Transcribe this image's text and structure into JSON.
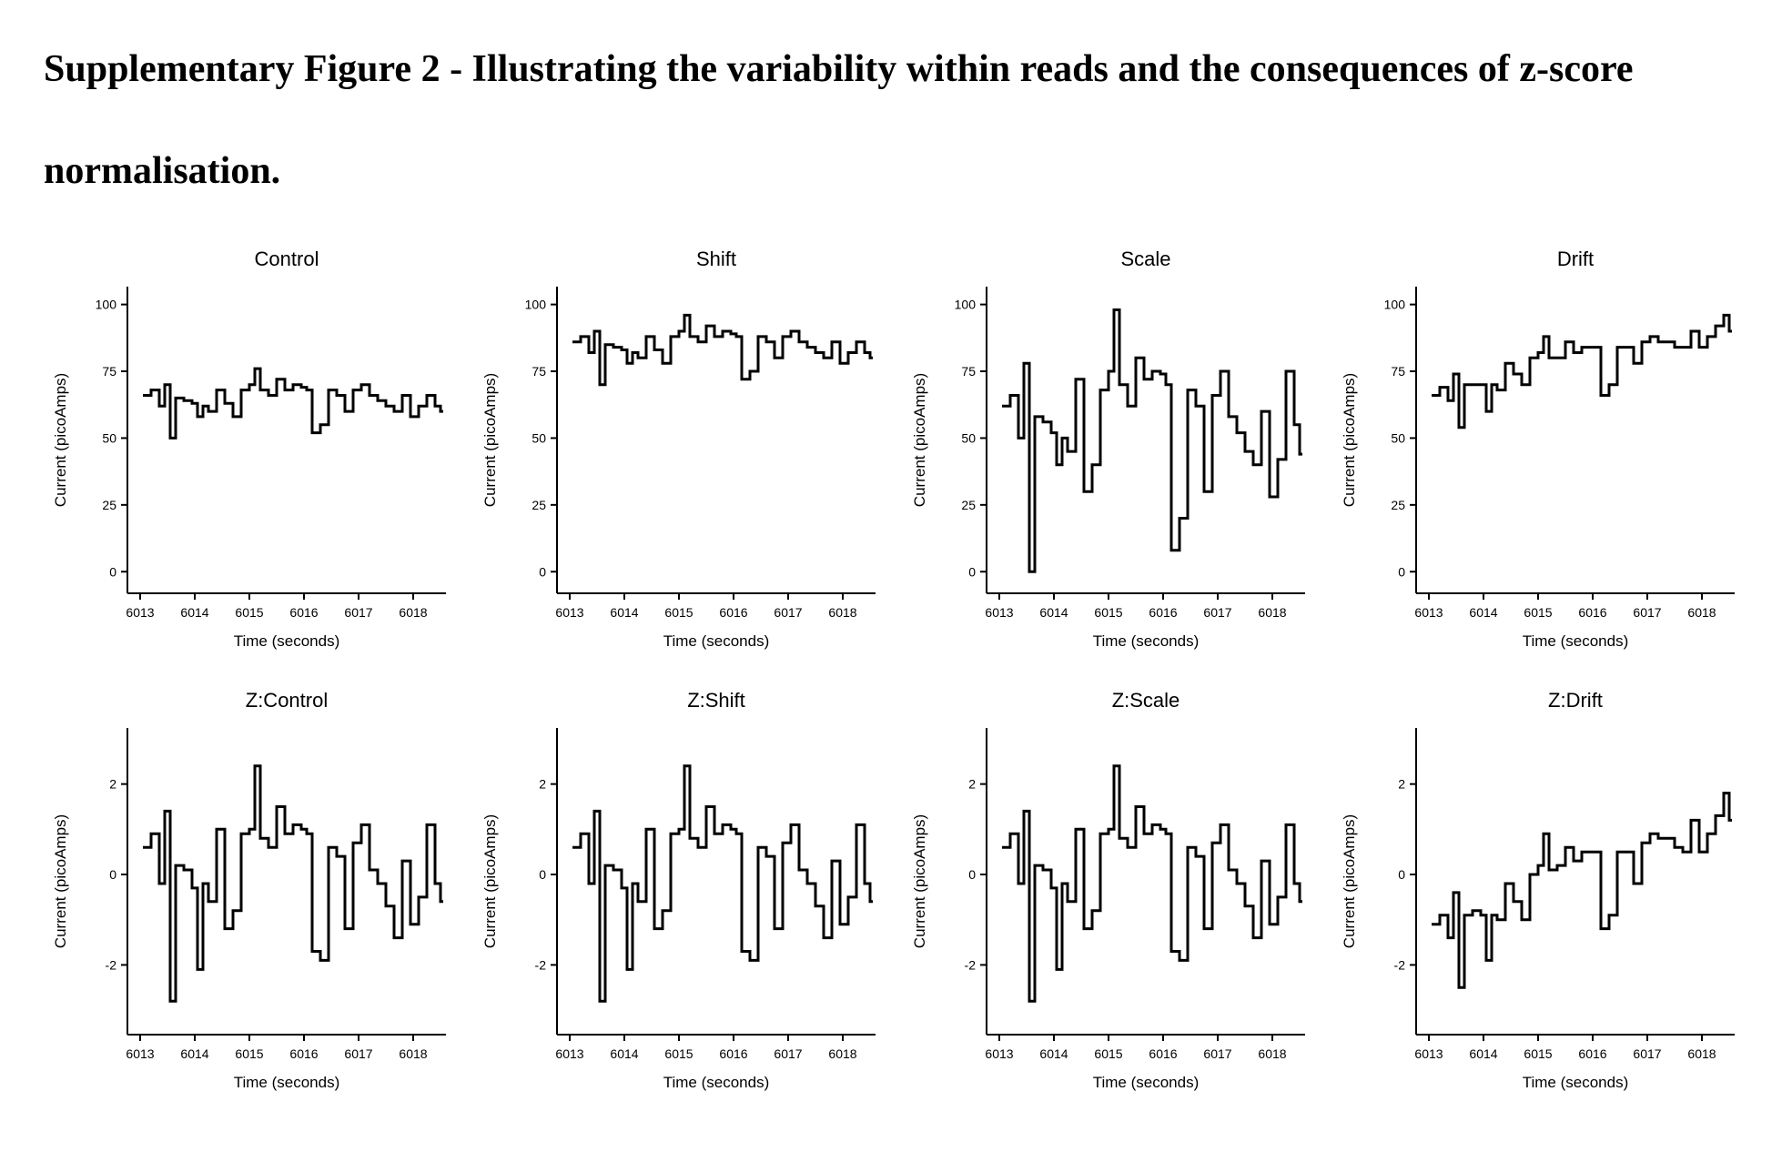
{
  "figure": {
    "title": "Supplementary Figure 2 - Illustrating the variability within reads and the consequences of z-score normalisation."
  },
  "colors": {
    "line": "#000000",
    "background": "#ffffff"
  },
  "chart_data": [
    {
      "type": "line",
      "title": "Control",
      "xlabel": "Time (seconds)",
      "ylabel": "Current (picoAmps)",
      "xlim": [
        6012.9,
        6018.6
      ],
      "ylim": [
        -4,
        106
      ],
      "xticks": [
        6013,
        6014,
        6015,
        6016,
        6017,
        6018
      ],
      "yticks": [
        0,
        25,
        50,
        75,
        100
      ],
      "x": [
        6013.05,
        6013.2,
        6013.35,
        6013.45,
        6013.55,
        6013.65,
        6013.8,
        6013.95,
        6014.05,
        6014.15,
        6014.25,
        6014.4,
        6014.55,
        6014.7,
        6014.85,
        6015.0,
        6015.1,
        6015.2,
        6015.35,
        6015.5,
        6015.65,
        6015.8,
        6015.95,
        6016.05,
        6016.15,
        6016.3,
        6016.45,
        6016.6,
        6016.75,
        6016.9,
        6017.05,
        6017.2,
        6017.35,
        6017.5,
        6017.65,
        6017.8,
        6017.95,
        6018.1,
        6018.25,
        6018.4,
        6018.5
      ],
      "y": [
        66,
        68,
        62,
        70,
        50,
        65,
        64,
        63,
        58,
        62,
        60,
        68,
        63,
        58,
        68,
        70,
        76,
        68,
        66,
        72,
        68,
        70,
        69,
        68,
        52,
        55,
        68,
        66,
        60,
        68,
        70,
        66,
        64,
        62,
        60,
        66,
        58,
        62,
        66,
        62,
        60
      ]
    },
    {
      "type": "line",
      "title": "Shift",
      "xlabel": "Time (seconds)",
      "ylabel": "Current (picoAmps)",
      "xlim": [
        6012.9,
        6018.6
      ],
      "ylim": [
        -4,
        106
      ],
      "xticks": [
        6013,
        6014,
        6015,
        6016,
        6017,
        6018
      ],
      "yticks": [
        0,
        25,
        50,
        75,
        100
      ],
      "x": [
        6013.05,
        6013.2,
        6013.35,
        6013.45,
        6013.55,
        6013.65,
        6013.8,
        6013.95,
        6014.05,
        6014.15,
        6014.25,
        6014.4,
        6014.55,
        6014.7,
        6014.85,
        6015.0,
        6015.1,
        6015.2,
        6015.35,
        6015.5,
        6015.65,
        6015.8,
        6015.95,
        6016.05,
        6016.15,
        6016.3,
        6016.45,
        6016.6,
        6016.75,
        6016.9,
        6017.05,
        6017.2,
        6017.35,
        6017.5,
        6017.65,
        6017.8,
        6017.95,
        6018.1,
        6018.25,
        6018.4,
        6018.5
      ],
      "y": [
        86,
        88,
        82,
        90,
        70,
        85,
        84,
        83,
        78,
        82,
        80,
        88,
        83,
        78,
        88,
        90,
        96,
        88,
        86,
        92,
        88,
        90,
        89,
        88,
        72,
        75,
        88,
        86,
        80,
        88,
        90,
        86,
        84,
        82,
        80,
        86,
        78,
        82,
        86,
        82,
        80
      ]
    },
    {
      "type": "line",
      "title": "Scale",
      "xlabel": "Time (seconds)",
      "ylabel": "Current (picoAmps)",
      "xlim": [
        6012.9,
        6018.6
      ],
      "ylim": [
        -4,
        106
      ],
      "xticks": [
        6013,
        6014,
        6015,
        6016,
        6017,
        6018
      ],
      "yticks": [
        0,
        25,
        50,
        75,
        100
      ],
      "x": [
        6013.05,
        6013.2,
        6013.35,
        6013.45,
        6013.55,
        6013.65,
        6013.8,
        6013.95,
        6014.05,
        6014.15,
        6014.25,
        6014.4,
        6014.55,
        6014.7,
        6014.85,
        6015.0,
        6015.1,
        6015.2,
        6015.35,
        6015.5,
        6015.65,
        6015.8,
        6015.95,
        6016.05,
        6016.15,
        6016.3,
        6016.45,
        6016.6,
        6016.75,
        6016.9,
        6017.05,
        6017.2,
        6017.35,
        6017.5,
        6017.65,
        6017.8,
        6017.95,
        6018.1,
        6018.25,
        6018.4,
        6018.5
      ],
      "y": [
        62,
        66,
        50,
        78,
        0,
        58,
        56,
        52,
        40,
        50,
        45,
        72,
        30,
        40,
        68,
        75,
        98,
        70,
        62,
        80,
        72,
        75,
        74,
        70,
        8,
        20,
        68,
        62,
        30,
        66,
        75,
        58,
        52,
        45,
        40,
        60,
        28,
        42,
        75,
        55,
        44
      ]
    },
    {
      "type": "line",
      "title": "Drift",
      "xlabel": "Time (seconds)",
      "ylabel": "Current (picoAmps)",
      "xlim": [
        6012.9,
        6018.6
      ],
      "ylim": [
        -4,
        106
      ],
      "xticks": [
        6013,
        6014,
        6015,
        6016,
        6017,
        6018
      ],
      "yticks": [
        0,
        25,
        50,
        75,
        100
      ],
      "x": [
        6013.05,
        6013.2,
        6013.35,
        6013.45,
        6013.55,
        6013.65,
        6013.8,
        6013.95,
        6014.05,
        6014.15,
        6014.25,
        6014.4,
        6014.55,
        6014.7,
        6014.85,
        6015.0,
        6015.1,
        6015.2,
        6015.35,
        6015.5,
        6015.65,
        6015.8,
        6015.95,
        6016.05,
        6016.15,
        6016.3,
        6016.45,
        6016.6,
        6016.75,
        6016.9,
        6017.05,
        6017.2,
        6017.35,
        6017.5,
        6017.65,
        6017.8,
        6017.95,
        6018.1,
        6018.25,
        6018.4,
        6018.5
      ],
      "y": [
        66,
        69,
        64,
        74,
        54,
        70,
        70,
        70,
        60,
        70,
        68,
        78,
        74,
        70,
        80,
        82,
        88,
        80,
        80,
        86,
        82,
        84,
        84,
        84,
        66,
        70,
        84,
        84,
        78,
        86,
        88,
        86,
        86,
        84,
        84,
        90,
        84,
        88,
        92,
        96,
        90
      ]
    },
    {
      "type": "line",
      "title": "Z:Control",
      "xlabel": "Time (seconds)",
      "ylabel": "Current (picoAmps)",
      "xlim": [
        6012.9,
        6018.6
      ],
      "ylim": [
        -3.3,
        3.2
      ],
      "xticks": [
        6013,
        6014,
        6015,
        6016,
        6017,
        6018
      ],
      "yticks": [
        -2,
        0,
        2
      ],
      "x": [
        6013.05,
        6013.2,
        6013.35,
        6013.45,
        6013.55,
        6013.65,
        6013.8,
        6013.95,
        6014.05,
        6014.15,
        6014.25,
        6014.4,
        6014.55,
        6014.7,
        6014.85,
        6015.0,
        6015.1,
        6015.2,
        6015.35,
        6015.5,
        6015.65,
        6015.8,
        6015.95,
        6016.05,
        6016.15,
        6016.3,
        6016.45,
        6016.6,
        6016.75,
        6016.9,
        6017.05,
        6017.2,
        6017.35,
        6017.5,
        6017.65,
        6017.8,
        6017.95,
        6018.1,
        6018.25,
        6018.4,
        6018.5
      ],
      "y": [
        0.6,
        0.9,
        -0.2,
        1.4,
        -2.8,
        0.2,
        0.1,
        -0.3,
        -2.1,
        -0.2,
        -0.6,
        1.0,
        -1.2,
        -0.8,
        0.9,
        1.0,
        2.4,
        0.8,
        0.6,
        1.5,
        0.9,
        1.1,
        1.0,
        0.9,
        -1.7,
        -1.9,
        0.6,
        0.4,
        -1.2,
        0.7,
        1.1,
        0.1,
        -0.2,
        -0.7,
        -1.4,
        0.3,
        -1.1,
        -0.5,
        1.1,
        -0.2,
        -0.6
      ]
    },
    {
      "type": "line",
      "title": "Z:Shift",
      "xlabel": "Time (seconds)",
      "ylabel": "Current (picoAmps)",
      "xlim": [
        6012.9,
        6018.6
      ],
      "ylim": [
        -3.3,
        3.2
      ],
      "xticks": [
        6013,
        6014,
        6015,
        6016,
        6017,
        6018
      ],
      "yticks": [
        -2,
        0,
        2
      ],
      "x": [
        6013.05,
        6013.2,
        6013.35,
        6013.45,
        6013.55,
        6013.65,
        6013.8,
        6013.95,
        6014.05,
        6014.15,
        6014.25,
        6014.4,
        6014.55,
        6014.7,
        6014.85,
        6015.0,
        6015.1,
        6015.2,
        6015.35,
        6015.5,
        6015.65,
        6015.8,
        6015.95,
        6016.05,
        6016.15,
        6016.3,
        6016.45,
        6016.6,
        6016.75,
        6016.9,
        6017.05,
        6017.2,
        6017.35,
        6017.5,
        6017.65,
        6017.8,
        6017.95,
        6018.1,
        6018.25,
        6018.4,
        6018.5
      ],
      "y": [
        0.6,
        0.9,
        -0.2,
        1.4,
        -2.8,
        0.2,
        0.1,
        -0.3,
        -2.1,
        -0.2,
        -0.6,
        1.0,
        -1.2,
        -0.8,
        0.9,
        1.0,
        2.4,
        0.8,
        0.6,
        1.5,
        0.9,
        1.1,
        1.0,
        0.9,
        -1.7,
        -1.9,
        0.6,
        0.4,
        -1.2,
        0.7,
        1.1,
        0.1,
        -0.2,
        -0.7,
        -1.4,
        0.3,
        -1.1,
        -0.5,
        1.1,
        -0.2,
        -0.6
      ]
    },
    {
      "type": "line",
      "title": "Z:Scale",
      "xlabel": "Time (seconds)",
      "ylabel": "Current (picoAmps)",
      "xlim": [
        6012.9,
        6018.6
      ],
      "ylim": [
        -3.3,
        3.2
      ],
      "xticks": [
        6013,
        6014,
        6015,
        6016,
        6017,
        6018
      ],
      "yticks": [
        -2,
        0,
        2
      ],
      "x": [
        6013.05,
        6013.2,
        6013.35,
        6013.45,
        6013.55,
        6013.65,
        6013.8,
        6013.95,
        6014.05,
        6014.15,
        6014.25,
        6014.4,
        6014.55,
        6014.7,
        6014.85,
        6015.0,
        6015.1,
        6015.2,
        6015.35,
        6015.5,
        6015.65,
        6015.8,
        6015.95,
        6016.05,
        6016.15,
        6016.3,
        6016.45,
        6016.6,
        6016.75,
        6016.9,
        6017.05,
        6017.2,
        6017.35,
        6017.5,
        6017.65,
        6017.8,
        6017.95,
        6018.1,
        6018.25,
        6018.4,
        6018.5
      ],
      "y": [
        0.6,
        0.9,
        -0.2,
        1.4,
        -2.8,
        0.2,
        0.1,
        -0.3,
        -2.1,
        -0.2,
        -0.6,
        1.0,
        -1.2,
        -0.8,
        0.9,
        1.0,
        2.4,
        0.8,
        0.6,
        1.5,
        0.9,
        1.1,
        1.0,
        0.9,
        -1.7,
        -1.9,
        0.6,
        0.4,
        -1.2,
        0.7,
        1.1,
        0.1,
        -0.2,
        -0.7,
        -1.4,
        0.3,
        -1.1,
        -0.5,
        1.1,
        -0.2,
        -0.6
      ]
    },
    {
      "type": "line",
      "title": "Z:Drift",
      "xlabel": "Time (seconds)",
      "ylabel": "Current (picoAmps)",
      "xlim": [
        6012.9,
        6018.6
      ],
      "ylim": [
        -3.3,
        3.2
      ],
      "xticks": [
        6013,
        6014,
        6015,
        6016,
        6017,
        6018
      ],
      "yticks": [
        -2,
        0,
        2
      ],
      "x": [
        6013.05,
        6013.2,
        6013.35,
        6013.45,
        6013.55,
        6013.65,
        6013.8,
        6013.95,
        6014.05,
        6014.15,
        6014.25,
        6014.4,
        6014.55,
        6014.7,
        6014.85,
        6015.0,
        6015.1,
        6015.2,
        6015.35,
        6015.5,
        6015.65,
        6015.8,
        6015.95,
        6016.05,
        6016.15,
        6016.3,
        6016.45,
        6016.6,
        6016.75,
        6016.9,
        6017.05,
        6017.2,
        6017.35,
        6017.5,
        6017.65,
        6017.8,
        6017.95,
        6018.1,
        6018.25,
        6018.4,
        6018.5
      ],
      "y": [
        -1.1,
        -0.9,
        -1.4,
        -0.4,
        -2.5,
        -0.9,
        -0.8,
        -0.9,
        -1.9,
        -0.9,
        -1.0,
        -0.2,
        -0.6,
        -1.0,
        0.0,
        0.2,
        0.9,
        0.1,
        0.2,
        0.6,
        0.3,
        0.5,
        0.5,
        0.5,
        -1.2,
        -0.9,
        0.5,
        0.5,
        -0.2,
        0.7,
        0.9,
        0.8,
        0.8,
        0.6,
        0.5,
        1.2,
        0.5,
        0.9,
        1.3,
        1.8,
        1.2
      ]
    }
  ]
}
